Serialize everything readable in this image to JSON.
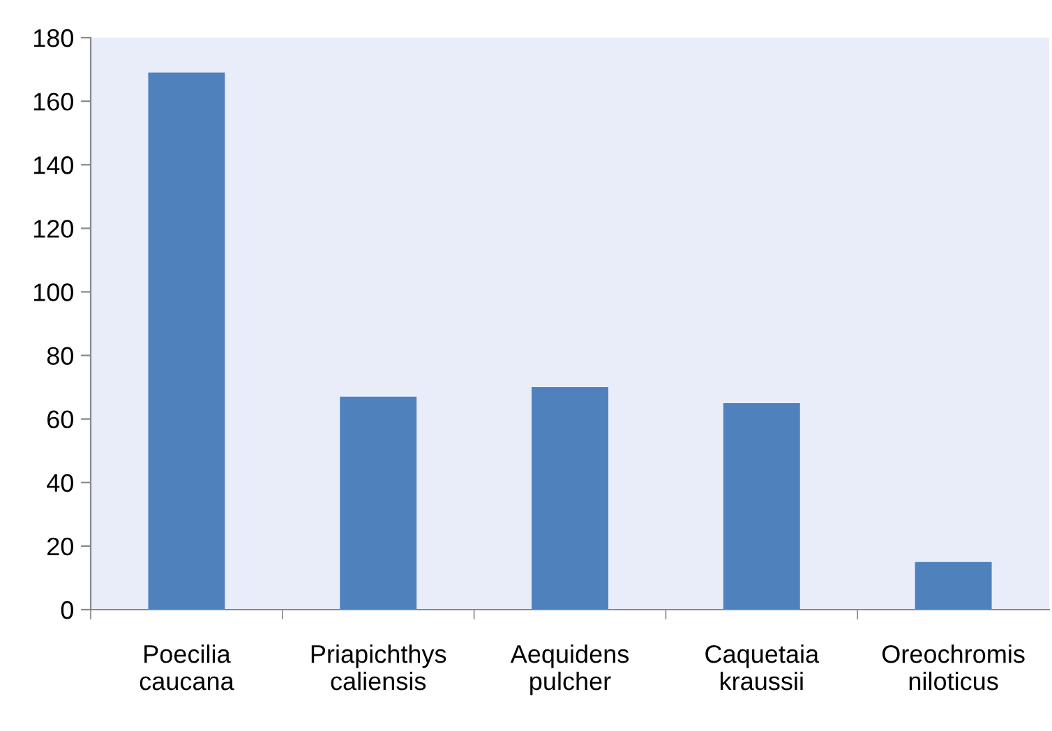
{
  "chart_data": {
    "type": "bar",
    "categories": [
      "Poecilia\ncaucana",
      "Priapichthys\ncaliensis",
      "Aequidens\npulcher",
      "Caquetaia\nkraussii",
      "Oreochromis\nniloticus"
    ],
    "values": [
      169,
      67,
      70,
      65,
      15
    ],
    "color": "#4f81bd",
    "ylim": [
      0,
      180
    ],
    "yticks": [
      0,
      20,
      40,
      60,
      80,
      100,
      120,
      140,
      160,
      180
    ],
    "grid": false,
    "legend": false
  }
}
